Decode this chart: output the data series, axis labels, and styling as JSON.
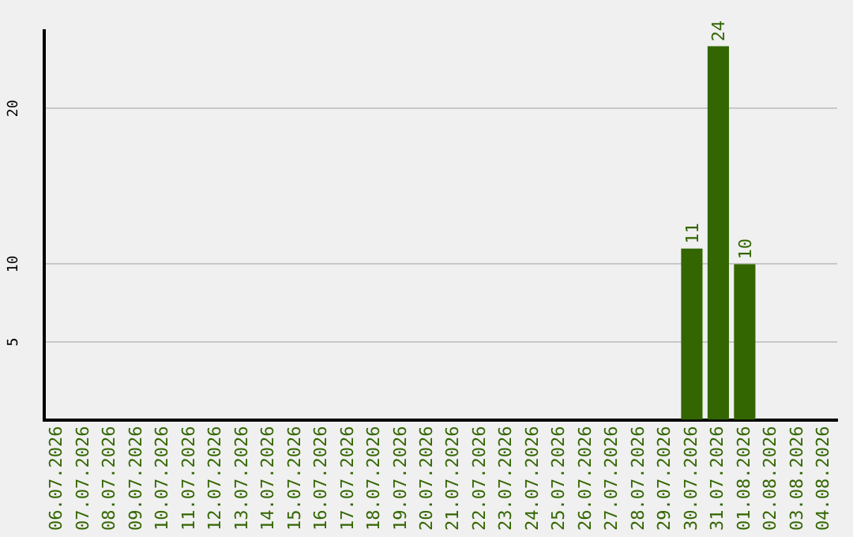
{
  "chart_data": {
    "type": "bar",
    "categories": [
      "06.07.2026",
      "07.07.2026",
      "08.07.2026",
      "09.07.2026",
      "10.07.2026",
      "11.07.2026",
      "12.07.2026",
      "13.07.2026",
      "14.07.2026",
      "15.07.2026",
      "16.07.2026",
      "17.07.2026",
      "18.07.2026",
      "19.07.2026",
      "20.07.2026",
      "21.07.2026",
      "22.07.2026",
      "23.07.2026",
      "24.07.2026",
      "25.07.2026",
      "26.07.2026",
      "27.07.2026",
      "28.07.2026",
      "29.07.2026",
      "30.07.2026",
      "31.07.2026",
      "01.08.2026",
      "02.08.2026",
      "03.08.2026",
      "04.08.2026"
    ],
    "values": [
      0,
      0,
      0,
      0,
      0,
      0,
      0,
      0,
      0,
      0,
      0,
      0,
      0,
      0,
      0,
      0,
      0,
      0,
      0,
      0,
      0,
      0,
      0,
      0,
      11,
      24,
      10,
      0,
      0,
      0
    ],
    "value_labels": [
      null,
      null,
      null,
      null,
      null,
      null,
      null,
      null,
      null,
      null,
      null,
      null,
      null,
      null,
      null,
      null,
      null,
      null,
      null,
      null,
      null,
      null,
      null,
      null,
      "11",
      "24",
      "10",
      null,
      null,
      null
    ],
    "color": "#336600",
    "ylim": [
      0,
      25
    ],
    "yticks": [
      5,
      10,
      20
    ],
    "grid": "y",
    "legend": false
  }
}
